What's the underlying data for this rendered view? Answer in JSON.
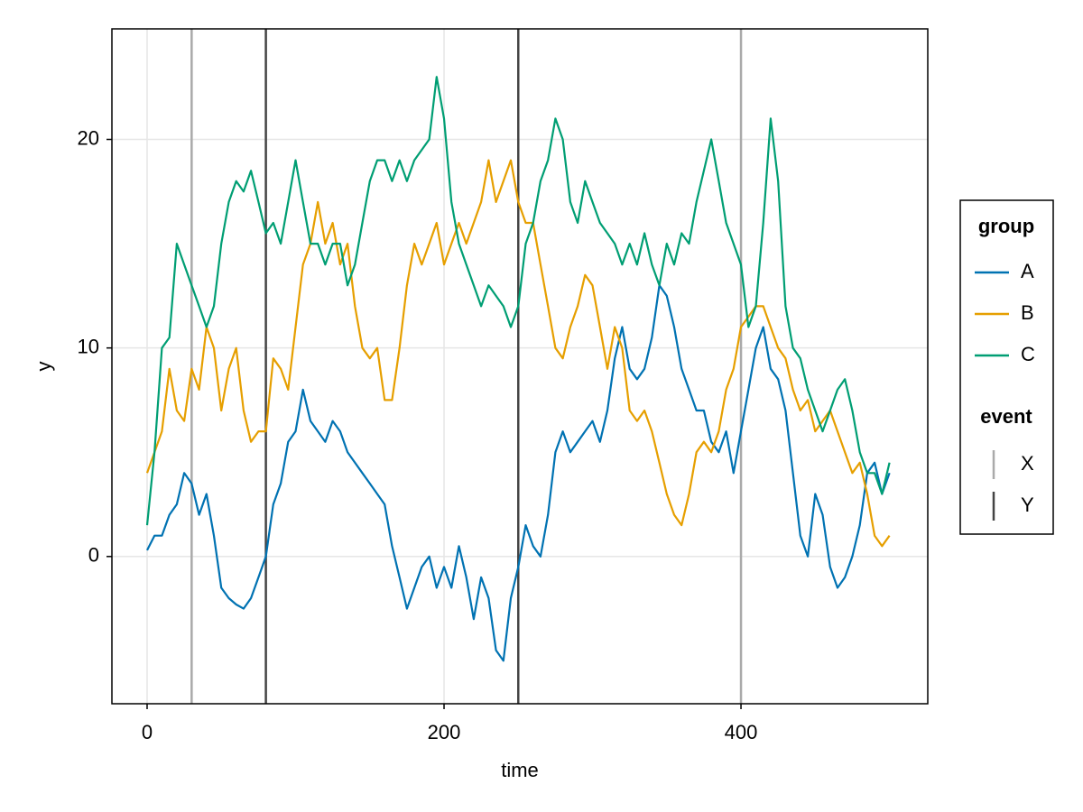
{
  "chart_data": {
    "type": "line",
    "xlabel": "time",
    "ylabel": "y",
    "x": [
      0,
      5,
      10,
      15,
      20,
      25,
      30,
      35,
      40,
      45,
      50,
      55,
      60,
      65,
      70,
      75,
      80,
      85,
      90,
      95,
      100,
      105,
      110,
      115,
      120,
      125,
      130,
      135,
      140,
      145,
      150,
      155,
      160,
      165,
      170,
      175,
      180,
      185,
      190,
      195,
      200,
      205,
      210,
      215,
      220,
      225,
      230,
      235,
      240,
      245,
      250,
      255,
      260,
      265,
      270,
      275,
      280,
      285,
      290,
      295,
      300,
      305,
      310,
      315,
      320,
      325,
      330,
      335,
      340,
      345,
      350,
      355,
      360,
      365,
      370,
      375,
      380,
      385,
      390,
      395,
      400,
      405,
      410,
      415,
      420,
      425,
      430,
      435,
      440,
      445,
      450,
      455,
      460,
      465,
      470,
      475,
      480,
      485,
      490,
      495,
      500
    ],
    "series": [
      {
        "name": "A",
        "color": "#0072b2",
        "values": [
          0.3,
          1,
          1,
          2,
          2.5,
          4,
          3.5,
          2,
          3,
          1,
          -1.5,
          -2,
          -2.3,
          -2.5,
          -2,
          -1,
          0,
          2.5,
          3.5,
          5.5,
          6,
          8,
          6.5,
          6,
          5.5,
          6.5,
          6,
          5,
          4.5,
          4,
          3.5,
          3,
          2.5,
          0.5,
          -1,
          -2.5,
          -1.5,
          -0.5,
          0,
          -1.5,
          -0.5,
          -1.5,
          0.5,
          -1,
          -3,
          -1,
          -2,
          -4.5,
          -5,
          -2,
          -0.5,
          1.5,
          0.5,
          0,
          2,
          5,
          6,
          5,
          5.5,
          6,
          6.5,
          5.5,
          7,
          9.5,
          11,
          9,
          8.5,
          9,
          10.5,
          13,
          12.5,
          11,
          9,
          8,
          7,
          7,
          5.5,
          5,
          6,
          4,
          6,
          8,
          10,
          11,
          9,
          8.5,
          7,
          4,
          1,
          0,
          3,
          2,
          -0.5,
          -1.5,
          -1,
          0,
          1.5,
          4,
          4.5,
          3,
          4
        ]
      },
      {
        "name": "B",
        "color": "#e69f00",
        "values": [
          4,
          5,
          6,
          9,
          7,
          6.5,
          9,
          8,
          11,
          10,
          7,
          9,
          10,
          7,
          5.5,
          6,
          6,
          9.5,
          9,
          8,
          11,
          14,
          15,
          17,
          15,
          16,
          14,
          15,
          12,
          10,
          9.5,
          10,
          7.5,
          7.5,
          10,
          13,
          15,
          14,
          15,
          16,
          14,
          15,
          16,
          15,
          16,
          17,
          19,
          17,
          18,
          19,
          17,
          16,
          16,
          14,
          12,
          10,
          9.5,
          11,
          12,
          13.5,
          13,
          11,
          9,
          11,
          10,
          7,
          6.5,
          7,
          6,
          4.5,
          3,
          2,
          1.5,
          3,
          5,
          5.5,
          5,
          6,
          8,
          9,
          11,
          11.5,
          12,
          12,
          11,
          10,
          9.5,
          8,
          7,
          7.5,
          6,
          6.5,
          7,
          6,
          5,
          4,
          4.5,
          3,
          1,
          0.5,
          1
        ]
      },
      {
        "name": "C",
        "color": "#009e73",
        "values": [
          1.5,
          5,
          10,
          10.5,
          15,
          14,
          13,
          12,
          11,
          12,
          15,
          17,
          18,
          17.5,
          18.5,
          17,
          15.5,
          16,
          15,
          17,
          19,
          17,
          15,
          15,
          14,
          15,
          15,
          13,
          14,
          16,
          18,
          19,
          19,
          18,
          19,
          18,
          19,
          19.5,
          20,
          23,
          21,
          17,
          15,
          14,
          13,
          12,
          13,
          12.5,
          12,
          11,
          12,
          15,
          16,
          18,
          19,
          21,
          20,
          17,
          16,
          18,
          17,
          16,
          15.5,
          15,
          14,
          15,
          14,
          15.5,
          14,
          13,
          15,
          14,
          15.5,
          15,
          17,
          18.5,
          20,
          18,
          16,
          15,
          14,
          11,
          12,
          16,
          21,
          18,
          12,
          10,
          9.5,
          8,
          7,
          6,
          7,
          8,
          8.5,
          7,
          5,
          4,
          4,
          3,
          4.5
        ]
      }
    ],
    "events": [
      {
        "name": "X",
        "color": "#aaaaaa",
        "x": [
          30,
          400
        ]
      },
      {
        "name": "Y",
        "color": "#444444",
        "x": [
          80,
          250
        ]
      }
    ],
    "legend": {
      "title": "group",
      "event_title": "event",
      "position": "right"
    },
    "xlim": [
      -23.7,
      525.8
    ],
    "xticks": [
      0,
      200,
      400
    ],
    "ylim": [
      -7.06,
      25.3
    ],
    "yticks": [
      0,
      10,
      20
    ],
    "grid": true
  }
}
